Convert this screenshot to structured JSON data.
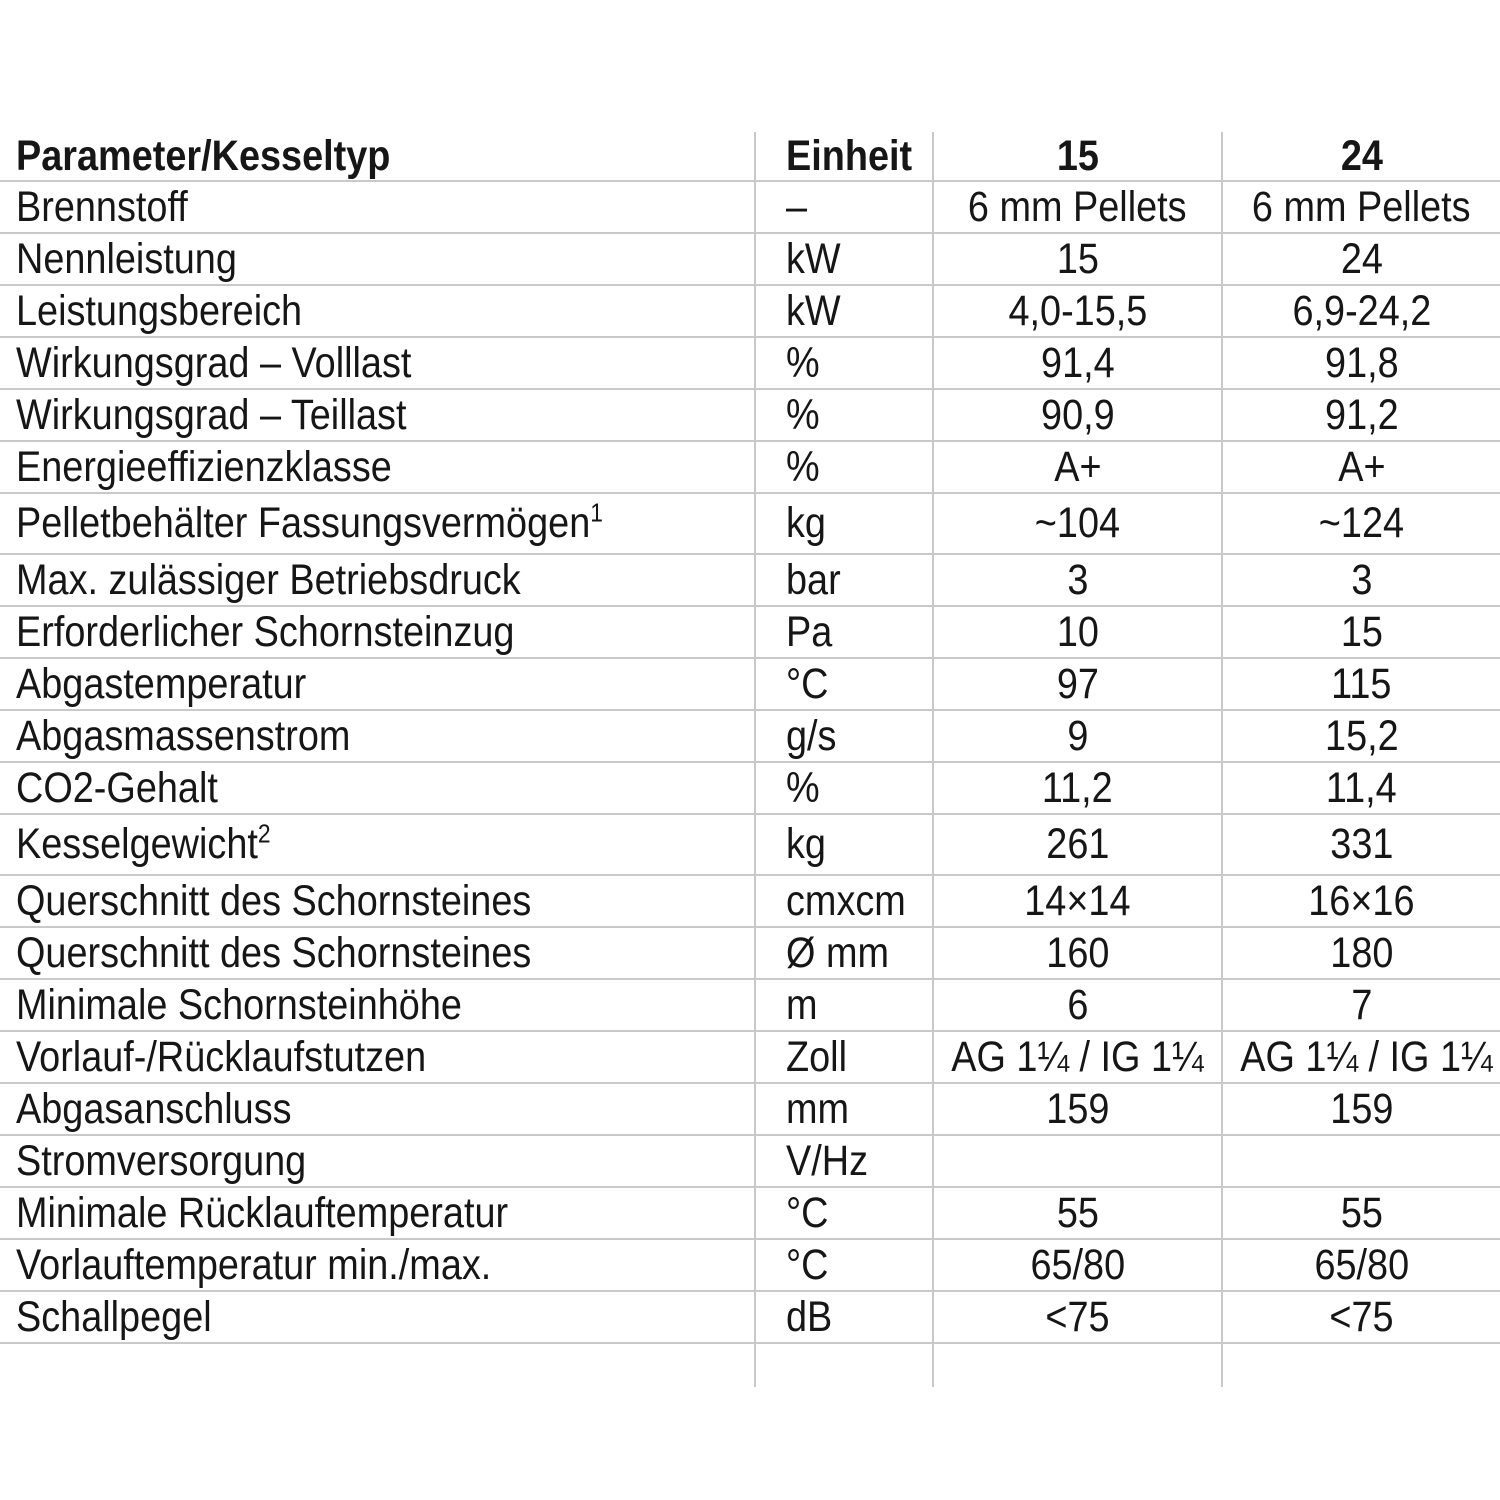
{
  "colors": {
    "grid_line": "#c9c9c9",
    "text": "#161616",
    "background": "#ffffff"
  },
  "table": {
    "header": {
      "param": "Parameter/Kesseltyp",
      "unit": "Einheit",
      "col15": "15",
      "col24": "24"
    },
    "rows": [
      {
        "param": "Brennstoff",
        "unit": "–",
        "v15": "6 mm Pellets",
        "v24": "6 mm Pellets"
      },
      {
        "param": "Nennleistung",
        "unit": "kW",
        "v15": "15",
        "v24": "24"
      },
      {
        "param": "Leistungsbereich",
        "unit": "kW",
        "v15": "4,0-15,5",
        "v24": "6,9-24,2"
      },
      {
        "param": "Wirkungsgrad – Volllast",
        "unit": "%",
        "v15": "91,4",
        "v24": "91,8"
      },
      {
        "param": "Wirkungsgrad – Teillast",
        "unit": "%",
        "v15": "90,9",
        "v24": "91,2"
      },
      {
        "param": "Energieeffizienzklasse",
        "unit": "%",
        "v15": "A+",
        "v24": "A+"
      },
      {
        "param": "Pelletbehälter Fassungsvermögen",
        "param_sup": "1",
        "unit": "kg",
        "v15": "~104",
        "v24": "~124"
      },
      {
        "param": "Max. zulässiger Betriebsdruck",
        "unit": "bar",
        "v15": "3",
        "v24": "3"
      },
      {
        "param": "Erforderlicher Schornsteinzug",
        "unit": "Pa",
        "v15": "10",
        "v24": "15"
      },
      {
        "param": "Abgastemperatur",
        "unit": "°C",
        "v15": "97",
        "v24": "115"
      },
      {
        "param": "Abgasmassenstrom",
        "unit": "g/s",
        "v15": "9",
        "v24": "15,2"
      },
      {
        "param": "CO2-Gehalt",
        "unit": "%",
        "v15": "11,2",
        "v24": "11,4"
      },
      {
        "param": "Kesselgewicht",
        "param_sup": "2",
        "unit": "kg",
        "v15": "261",
        "v24": "331"
      },
      {
        "param": "Querschnitt des Schornsteines",
        "unit": "cmxcm",
        "v15": "14×14",
        "v24": "16×16"
      },
      {
        "param": "Querschnitt des Schornsteines",
        "unit": "Ø mm",
        "v15": "160",
        "v24": "180"
      },
      {
        "param": "Minimale Schornsteinhöhe",
        "unit": "m",
        "v15": "6",
        "v24": "7"
      },
      {
        "param": "Vorlauf-/Rücklaufstutzen",
        "unit": "Zoll",
        "v15": "AG 1¼ / IG 1¼",
        "v24": "AG 1¼ / IG 1¼"
      },
      {
        "param": "Abgasanschluss",
        "unit": "mm",
        "v15": "159",
        "v24": "159"
      },
      {
        "param": "Stromversorgung",
        "unit": "V/Hz",
        "v15": "",
        "v24": ""
      },
      {
        "param": "Minimale Rücklauftemperatur",
        "unit": "°C",
        "v15": "55",
        "v24": "55"
      },
      {
        "param": "Vorlauftemperatur min./max.",
        "unit": "°C",
        "v15": "65/80",
        "v24": "65/80"
      },
      {
        "param": "Schallpegel",
        "unit": "dB",
        "v15": "<75",
        "v24": "<75"
      },
      {
        "param": "",
        "unit": "",
        "v15": "",
        "v24": ""
      }
    ]
  }
}
